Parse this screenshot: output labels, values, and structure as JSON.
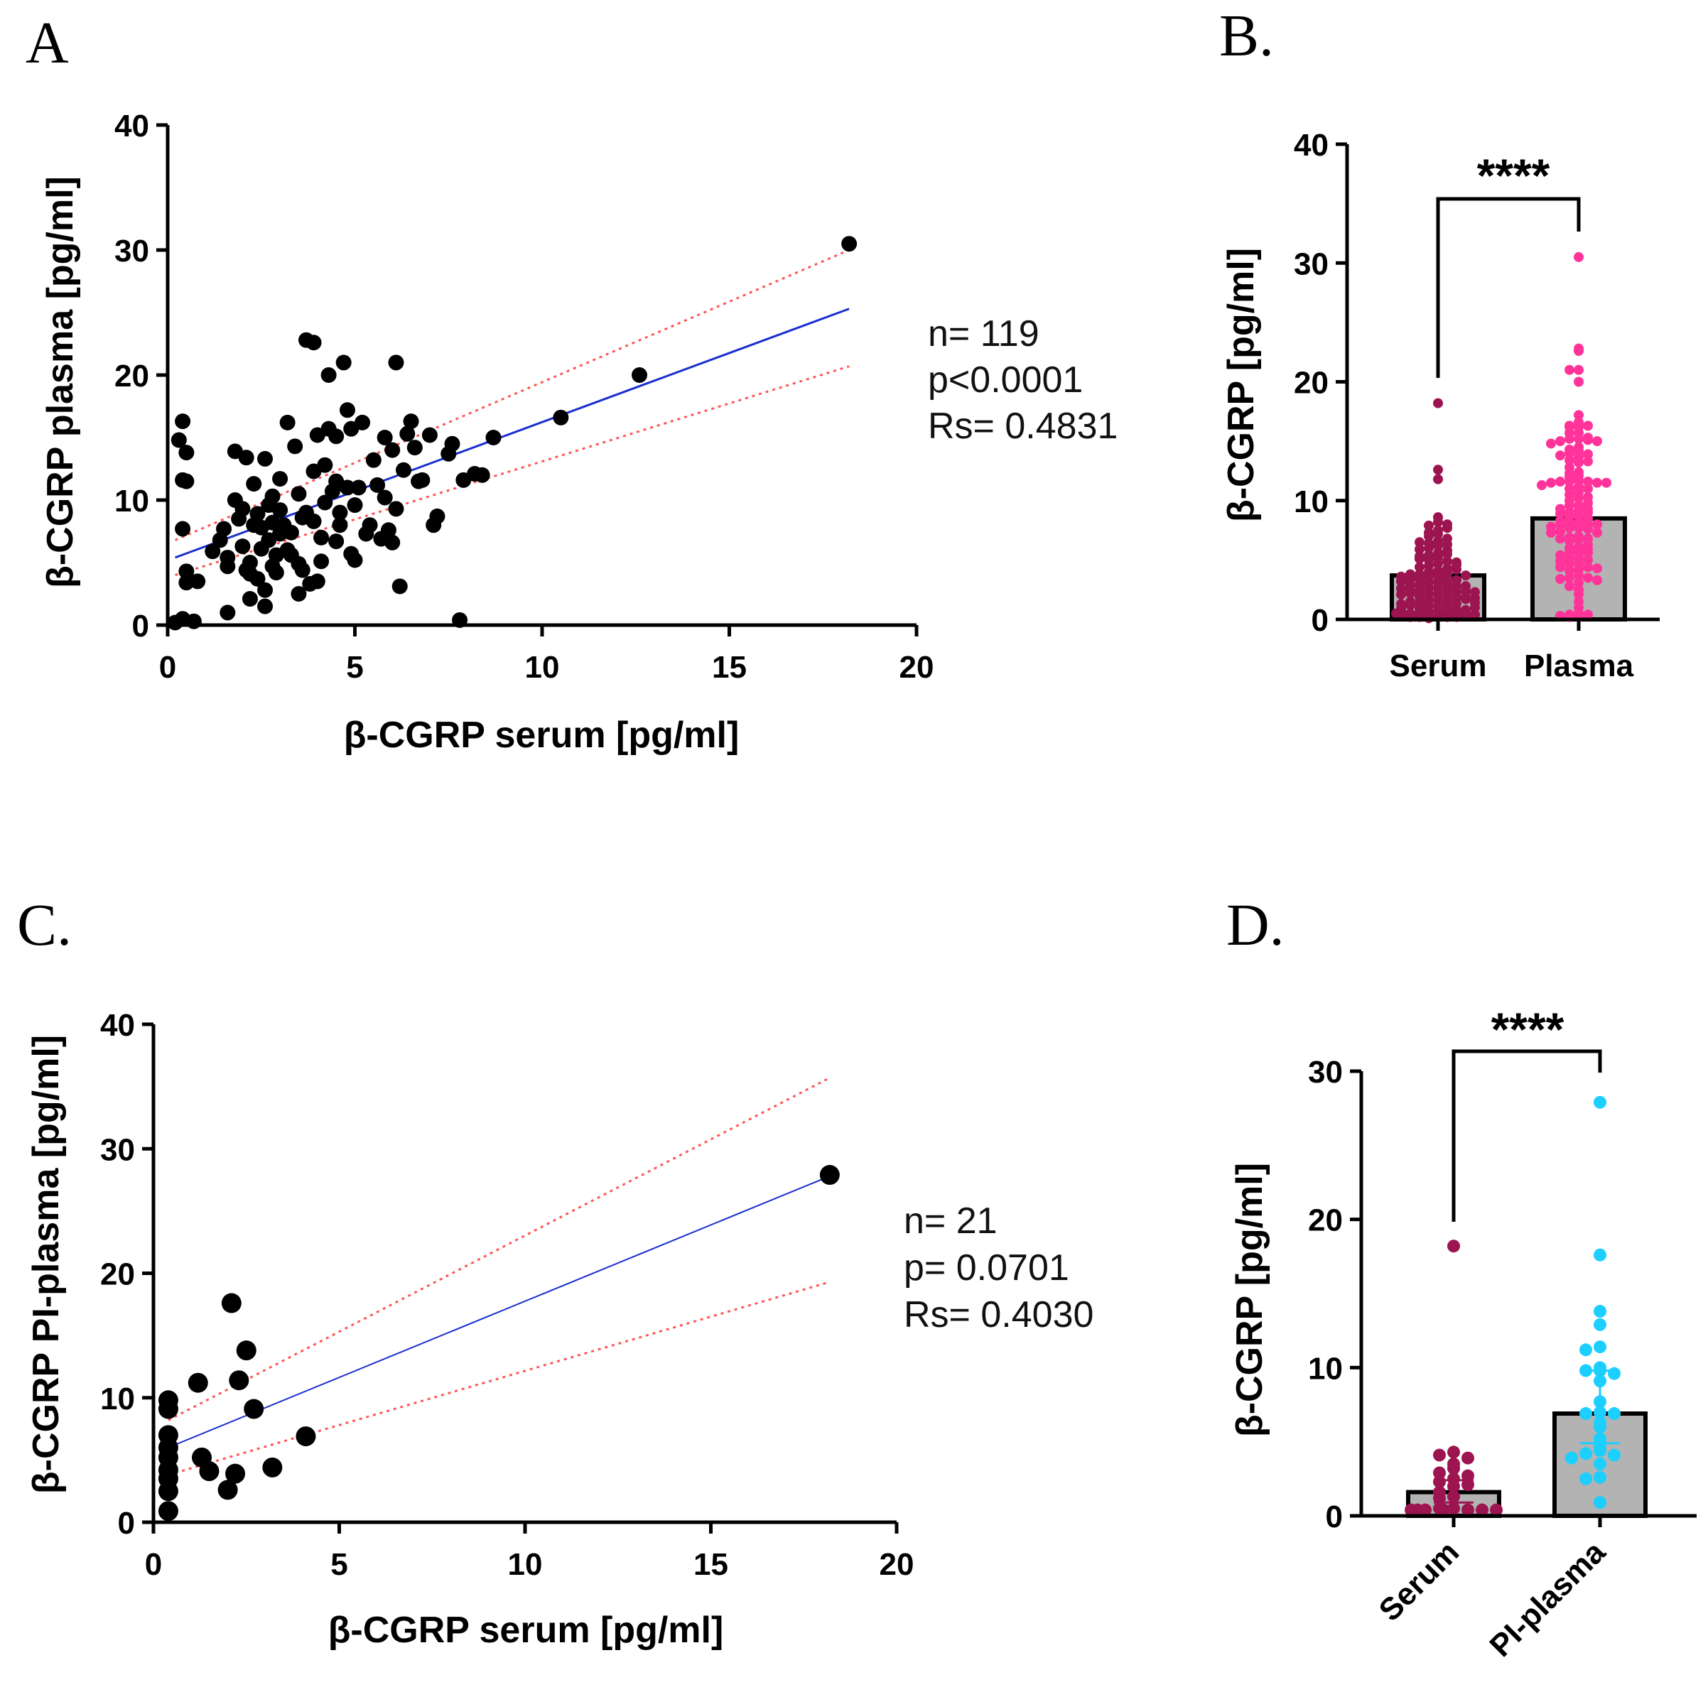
{
  "colors": {
    "regression_line": "#1a2fd0",
    "confidence_band": "#ff5555",
    "serum_points": "#9c1450",
    "plasma_points": "#ff3399",
    "pi_plasma_points": "#1ccfff",
    "bar_fill": "#b3b3b3",
    "scatter_points": "#000000"
  },
  "chart_data": [
    {
      "id": "A",
      "panel_label": "A",
      "type": "scatter",
      "xlabel": "β-CGRP serum [pg/ml]",
      "ylabel": "β-CGRP plasma [pg/ml]",
      "xlim": [
        0,
        20
      ],
      "ylim": [
        0,
        40
      ],
      "xticks": [
        0,
        5,
        10,
        15,
        20
      ],
      "yticks": [
        0,
        10,
        20,
        30,
        40
      ],
      "stats": [
        "n= 119",
        "p<0.0001",
        "Rs= 0.4831"
      ],
      "regression": {
        "x": [
          0.2,
          18.2
        ],
        "y": [
          5.4,
          25.3
        ]
      },
      "ci_upper": {
        "x": [
          0.2,
          18.2
        ],
        "y": [
          6.8,
          30.0
        ]
      },
      "ci_lower": {
        "x": [
          0.2,
          18.2
        ],
        "y": [
          4.0,
          20.7
        ]
      },
      "points": [
        [
          18.2,
          30.5
        ],
        [
          12.6,
          20.0
        ],
        [
          10.5,
          16.6
        ],
        [
          8.7,
          15.0
        ],
        [
          0.3,
          14.8
        ],
        [
          0.4,
          16.3
        ],
        [
          0.5,
          13.8
        ],
        [
          0.4,
          11.6
        ],
        [
          0.5,
          11.5
        ],
        [
          0.4,
          7.7
        ],
        [
          0.5,
          4.3
        ],
        [
          0.5,
          3.4
        ],
        [
          0.8,
          3.5
        ],
        [
          0.2,
          0.2
        ],
        [
          0.4,
          0.5
        ],
        [
          0.7,
          0.3
        ],
        [
          1.2,
          5.9
        ],
        [
          1.5,
          7.7
        ],
        [
          1.6,
          4.7
        ],
        [
          1.6,
          1.0
        ],
        [
          1.8,
          13.9
        ],
        [
          2.0,
          9.3
        ],
        [
          2.1,
          13.4
        ],
        [
          2.1,
          4.4
        ],
        [
          2.2,
          5.0
        ],
        [
          2.2,
          2.1
        ],
        [
          2.3,
          8.0
        ],
        [
          2.3,
          11.3
        ],
        [
          2.4,
          8.9
        ],
        [
          2.5,
          7.8
        ],
        [
          2.6,
          1.5
        ],
        [
          2.6,
          13.3
        ],
        [
          2.7,
          6.8
        ],
        [
          2.8,
          10.3
        ],
        [
          2.8,
          4.7
        ],
        [
          2.9,
          5.6
        ],
        [
          3.0,
          9.2
        ],
        [
          3.1,
          8.0
        ],
        [
          3.2,
          16.2
        ],
        [
          3.3,
          7.4
        ],
        [
          3.4,
          14.3
        ],
        [
          3.5,
          4.9
        ],
        [
          3.5,
          2.5
        ],
        [
          3.6,
          8.6
        ],
        [
          3.7,
          22.8
        ],
        [
          3.8,
          3.3
        ],
        [
          3.9,
          12.3
        ],
        [
          3.9,
          22.6
        ],
        [
          4.0,
          15.2
        ],
        [
          4.1,
          5.1
        ],
        [
          4.1,
          7.0
        ],
        [
          4.2,
          12.8
        ],
        [
          4.3,
          20.0
        ],
        [
          4.3,
          15.7
        ],
        [
          4.4,
          10.7
        ],
        [
          4.5,
          11.5
        ],
        [
          4.5,
          15.1
        ],
        [
          4.6,
          9.0
        ],
        [
          4.7,
          21.0
        ],
        [
          4.8,
          17.2
        ],
        [
          4.9,
          15.7
        ],
        [
          4.9,
          5.7
        ],
        [
          5.0,
          5.2
        ],
        [
          5.0,
          9.6
        ],
        [
          5.1,
          11.0
        ],
        [
          5.2,
          16.2
        ],
        [
          5.4,
          8.0
        ],
        [
          5.6,
          11.2
        ],
        [
          5.7,
          6.9
        ],
        [
          5.8,
          15.0
        ],
        [
          5.9,
          7.6
        ],
        [
          6.0,
          14.0
        ],
        [
          6.1,
          21.0
        ],
        [
          6.1,
          9.3
        ],
        [
          6.2,
          3.1
        ],
        [
          6.3,
          12.4
        ],
        [
          6.4,
          15.3
        ],
        [
          6.5,
          16.3
        ],
        [
          6.6,
          14.2
        ],
        [
          6.7,
          11.5
        ],
        [
          7.0,
          15.2
        ],
        [
          7.1,
          8.0
        ],
        [
          7.2,
          8.7
        ],
        [
          7.5,
          13.7
        ],
        [
          7.6,
          14.5
        ],
        [
          7.8,
          0.4
        ],
        [
          7.9,
          11.6
        ],
        [
          8.2,
          12.1
        ],
        [
          8.4,
          12.0
        ],
        [
          2.4,
          3.7
        ],
        [
          2.9,
          4.2
        ],
        [
          3.2,
          6.0
        ],
        [
          3.6,
          4.4
        ],
        [
          1.8,
          10.0
        ],
        [
          2.5,
          6.1
        ],
        [
          4.2,
          9.8
        ],
        [
          5.3,
          7.3
        ],
        [
          6.8,
          11.6
        ],
        [
          3.0,
          11.7
        ],
        [
          1.4,
          6.8
        ],
        [
          2.6,
          2.8
        ],
        [
          3.7,
          9.0
        ],
        [
          4.6,
          8.0
        ],
        [
          5.5,
          13.2
        ],
        [
          2.0,
          6.3
        ],
        [
          3.3,
          5.6
        ],
        [
          4.0,
          3.5
        ],
        [
          6.0,
          6.6
        ],
        [
          2.2,
          4.1
        ],
        [
          3.0,
          7.3
        ],
        [
          4.8,
          11.0
        ],
        [
          1.9,
          8.5
        ],
        [
          2.8,
          8.2
        ],
        [
          5.8,
          10.2
        ],
        [
          3.5,
          10.5
        ],
        [
          4.5,
          6.7
        ],
        [
          2.7,
          9.6
        ],
        [
          3.9,
          8.3
        ],
        [
          1.6,
          5.4
        ]
      ]
    },
    {
      "id": "B",
      "panel_label": "B.",
      "type": "bar",
      "ylabel": "β-CGRP [pg/ml]",
      "ylim": [
        0,
        40
      ],
      "yticks": [
        0,
        10,
        20,
        30,
        40
      ],
      "categories": [
        "Serum",
        "Plasma"
      ],
      "values": [
        3.7,
        8.5
      ],
      "significance": "****",
      "points": [
        [
          18.2,
          12.6,
          11.8,
          8.6,
          8.2,
          7.9,
          7.5,
          7.2,
          7.0,
          6.8,
          6.6,
          6.4,
          6.2,
          6.0,
          5.8,
          5.6,
          5.4,
          5.2,
          5.0,
          4.9,
          4.7,
          4.5,
          4.3,
          4.1,
          4.0,
          3.9,
          3.8,
          3.7,
          3.6,
          3.5,
          3.4,
          3.3,
          3.2,
          3.1,
          3.0,
          2.9,
          2.8,
          2.7,
          2.6,
          2.5,
          2.4,
          2.3,
          2.2,
          2.1,
          2.0,
          1.9,
          1.8,
          1.7,
          1.6,
          1.5,
          1.4,
          1.3,
          1.2,
          1.1,
          1.0,
          0.9,
          0.8,
          0.7,
          0.6,
          0.5,
          0.4,
          0.3,
          0.2,
          0.1,
          4.4,
          4.2,
          3.8,
          3.4,
          2.9,
          2.5,
          2.2,
          1.9,
          1.5,
          1.2,
          0.8,
          0.5,
          0.3,
          6.3,
          5.5,
          5.1,
          4.6,
          3.7,
          2.8,
          2.4,
          2.1,
          1.7,
          1.3,
          0.9,
          0.6,
          0.4,
          0.2,
          0.5,
          0.5,
          0.5,
          0.5,
          0.5,
          0.4,
          0.4,
          0.4,
          0.3,
          0.3,
          0.3,
          0.2,
          0.2,
          0.2,
          3.6,
          3.2,
          2.6,
          2.3,
          1.8,
          1.4,
          1.0,
          4.8,
          5.3,
          5.9,
          6.5,
          7.3,
          7.7,
          8.0
        ],
        [
          30.5,
          22.8,
          22.6,
          21.0,
          21.0,
          20.0,
          17.2,
          16.6,
          16.3,
          16.3,
          16.2,
          16.2,
          15.7,
          15.7,
          15.3,
          15.2,
          15.2,
          15.1,
          15.0,
          15.0,
          14.8,
          14.5,
          14.3,
          14.2,
          14.0,
          13.9,
          13.8,
          13.7,
          13.4,
          13.3,
          13.2,
          12.8,
          12.4,
          12.3,
          12.1,
          12.0,
          11.7,
          11.6,
          11.6,
          11.6,
          11.5,
          11.5,
          11.5,
          11.3,
          11.2,
          11.0,
          11.0,
          10.7,
          10.5,
          10.3,
          10.2,
          10.0,
          9.8,
          9.6,
          9.6,
          9.3,
          9.3,
          9.2,
          9.0,
          9.0,
          8.9,
          8.7,
          8.6,
          8.5,
          8.3,
          8.2,
          8.0,
          8.0,
          8.0,
          8.0,
          7.8,
          7.7,
          7.7,
          7.6,
          7.4,
          7.3,
          7.3,
          7.0,
          6.9,
          6.8,
          6.8,
          6.7,
          6.6,
          6.3,
          6.1,
          6.0,
          5.9,
          5.7,
          5.6,
          5.6,
          5.4,
          5.2,
          5.1,
          5.0,
          4.9,
          4.7,
          4.7,
          4.4,
          4.4,
          4.3,
          4.2,
          4.1,
          3.7,
          3.5,
          3.5,
          3.4,
          3.3,
          3.1,
          2.8,
          2.5,
          2.1,
          1.5,
          1.0,
          0.5,
          0.4,
          0.4,
          0.3,
          0.2,
          0.2
        ]
      ]
    },
    {
      "id": "C",
      "panel_label": "C.",
      "type": "scatter",
      "xlabel": "β-CGRP serum [pg/ml]",
      "ylabel": "β-CGRP PI-plasma [pg/ml]",
      "xlim": [
        0,
        20
      ],
      "ylim": [
        0,
        40
      ],
      "xticks": [
        0,
        5,
        10,
        15,
        20
      ],
      "yticks": [
        0,
        10,
        20,
        30,
        40
      ],
      "stats": [
        "n= 21",
        "p= 0.0701",
        "Rs= 0.4030"
      ],
      "regression": {
        "x": [
          0.4,
          18.2
        ],
        "y": [
          6.0,
          27.8
        ]
      },
      "ci_upper": {
        "x": [
          0.4,
          18.2
        ],
        "y": [
          8.2,
          35.7
        ]
      },
      "ci_lower": {
        "x": [
          0.4,
          18.2
        ],
        "y": [
          3.8,
          19.3
        ]
      },
      "points": [
        [
          18.2,
          27.9
        ],
        [
          2.1,
          17.6
        ],
        [
          1.2,
          11.2
        ],
        [
          2.5,
          13.8
        ],
        [
          2.3,
          11.4
        ],
        [
          2.7,
          9.1
        ],
        [
          4.1,
          6.9
        ],
        [
          3.2,
          4.4
        ],
        [
          2.2,
          3.9
        ],
        [
          2.0,
          2.6
        ],
        [
          1.3,
          5.2
        ],
        [
          1.5,
          4.1
        ],
        [
          0.4,
          9.8
        ],
        [
          0.4,
          9.1
        ],
        [
          0.4,
          7.0
        ],
        [
          0.4,
          6.0
        ],
        [
          0.4,
          4.2
        ],
        [
          0.4,
          3.5
        ],
        [
          0.4,
          2.5
        ],
        [
          0.4,
          0.9
        ],
        [
          0.4,
          5.2
        ]
      ]
    },
    {
      "id": "D",
      "panel_label": "D.",
      "type": "bar",
      "ylabel": "β-CGRP [pg/ml]",
      "ylim": [
        0,
        30
      ],
      "yticks": [
        0,
        10,
        20,
        30
      ],
      "categories": [
        "Serum",
        "PI-plasma"
      ],
      "values": [
        1.6,
        6.9
      ],
      "error_upper": [
        2.4,
        9.8
      ],
      "error_lower": [
        0.9,
        4.9
      ],
      "significance": "****",
      "points": [
        [
          18.2,
          4.3,
          4.1,
          3.9,
          3.5,
          3.2,
          2.9,
          2.7,
          2.5,
          2.3,
          2.1,
          2.0,
          1.6,
          1.3,
          1.2,
          0.5,
          0.5,
          0.4,
          0.4,
          0.4,
          0.4,
          0.4,
          0.4,
          0.4
        ],
        [
          27.9,
          17.6,
          13.8,
          12.9,
          11.4,
          11.2,
          10.0,
          9.8,
          9.8,
          9.6,
          9.1,
          7.7,
          7.0,
          6.9,
          6.9,
          6.3,
          6.0,
          5.2,
          4.8,
          4.4,
          4.2,
          4.1,
          3.9,
          3.5,
          2.6,
          2.5,
          0.9
        ]
      ]
    }
  ]
}
